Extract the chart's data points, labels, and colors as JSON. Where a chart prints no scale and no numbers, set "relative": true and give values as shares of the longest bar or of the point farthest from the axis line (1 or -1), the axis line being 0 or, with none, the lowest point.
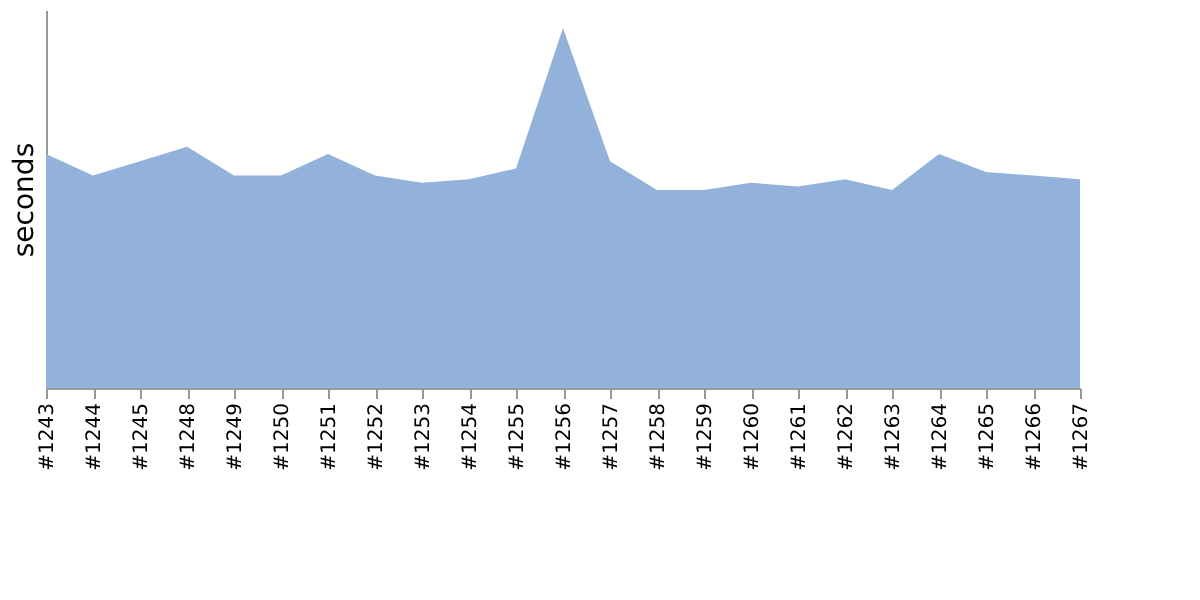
{
  "chart_data": {
    "type": "area",
    "ylabel": "seconds",
    "relative": true,
    "grid": false,
    "legend": false,
    "categories": [
      "#1243",
      "#1244",
      "#1245",
      "#1248",
      "#1249",
      "#1250",
      "#1251",
      "#1252",
      "#1253",
      "#1254",
      "#1255",
      "#1256",
      "#1257",
      "#1258",
      "#1259",
      "#1260",
      "#1261",
      "#1262",
      "#1263",
      "#1264",
      "#1265",
      "#1266",
      "#1267"
    ],
    "series": [
      {
        "color": "#92b2db",
        "values": [
          0.65,
          0.59,
          0.63,
          0.67,
          0.59,
          0.59,
          0.65,
          0.59,
          0.57,
          0.58,
          0.61,
          1,
          0.63,
          0.55,
          0.55,
          0.57,
          0.56,
          0.58,
          0.55,
          0.65,
          0.6,
          0.59,
          0.58
        ]
      }
    ]
  }
}
